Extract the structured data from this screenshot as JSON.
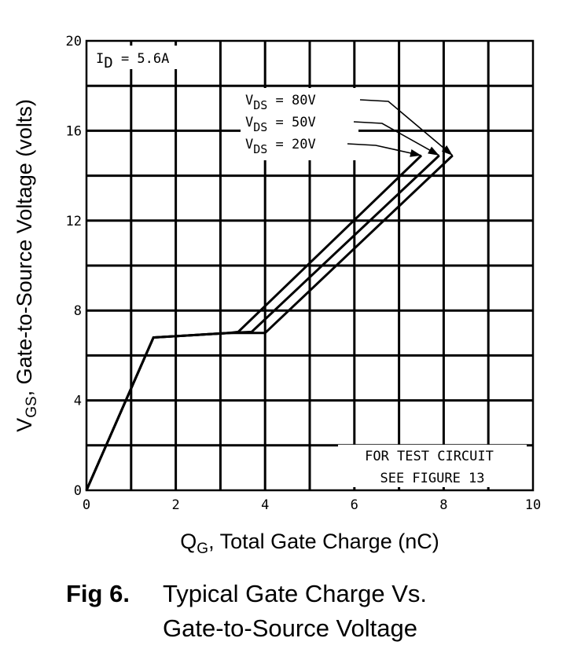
{
  "chart_data": {
    "type": "line",
    "xlabel_main": "Q",
    "xlabel_sub": "G",
    "xlabel_rest": ", Total Gate Charge (nC)",
    "ylabel_main": "V",
    "ylabel_sub": "GS",
    "ylabel_rest": ", Gate-to-Source Voltage (volts)",
    "xlim": [
      0,
      10
    ],
    "ylim": [
      0,
      20
    ],
    "x_ticks": [
      0,
      2,
      4,
      6,
      8,
      10
    ],
    "y_ticks": [
      0,
      4,
      8,
      12,
      16,
      20
    ],
    "grid": true,
    "condition": {
      "symbol": "I",
      "sub": "D",
      "value": " = 5.6A"
    },
    "series": [
      {
        "name": "V_DS = 80V",
        "label_main": "V",
        "label_sub": "DS",
        "label_value": " =  80V",
        "x": [
          0,
          1.5,
          3.2,
          4.0,
          8.2
        ],
        "y": [
          0,
          6.8,
          7.0,
          7.0,
          14.9
        ]
      },
      {
        "name": "V_DS = 50V",
        "label_main": "V",
        "label_sub": "DS",
        "label_value": " =  50V",
        "x": [
          0,
          1.5,
          3.2,
          3.7,
          7.9
        ],
        "y": [
          0,
          6.8,
          7.0,
          7.05,
          14.9
        ]
      },
      {
        "name": "V_DS = 20V",
        "label_main": "V",
        "label_sub": "DS",
        "label_value": " =  20V",
        "x": [
          0,
          1.5,
          3.2,
          3.4,
          7.5
        ],
        "y": [
          0,
          6.8,
          7.0,
          7.05,
          14.9
        ]
      }
    ],
    "annotation_lines": [
      "FOR TEST CIRCUIT",
      "SEE FIGURE 13"
    ]
  },
  "caption": {
    "number": "Fig 6.",
    "line1": "Typical Gate Charge Vs.",
    "line2": "Gate-to-Source Voltage"
  }
}
